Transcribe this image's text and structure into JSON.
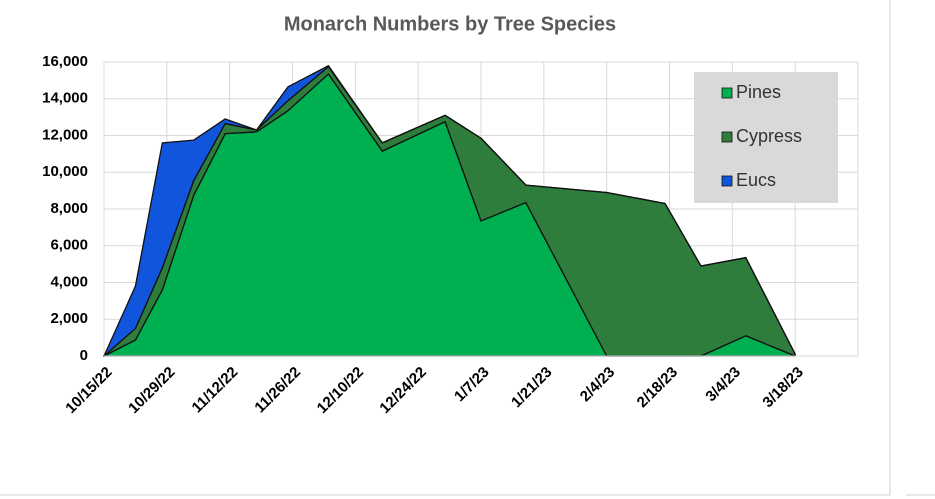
{
  "chart_data": {
    "type": "area",
    "stacked": true,
    "title": "Monarch Numbers by Tree Species",
    "x": [
      "2022-10-15",
      "2022-10-22",
      "2022-10-28",
      "2022-11-04",
      "2022-11-11",
      "2022-11-18",
      "2022-11-25",
      "2022-12-04",
      "2022-12-16",
      "2022-12-30",
      "2023-01-07",
      "2023-01-17",
      "2023-02-04",
      "2023-02-17",
      "2023-02-25",
      "2023-03-07",
      "2023-03-18"
    ],
    "series": [
      {
        "name": "Pines",
        "color": "#00b050",
        "values": [
          0,
          870,
          3600,
          8750,
          12100,
          12200,
          13350,
          15350,
          11150,
          12750,
          7350,
          8350,
          0,
          0,
          0,
          1100,
          0
        ]
      },
      {
        "name": "Cypress",
        "color": "#2e7d3c",
        "values": [
          0,
          630,
          1200,
          800,
          550,
          100,
          550,
          400,
          450,
          350,
          4500,
          950,
          8900,
          8300,
          4900,
          4250,
          100
        ]
      },
      {
        "name": "Eucs",
        "color": "#1155dd",
        "values": [
          0,
          2300,
          6800,
          2200,
          250,
          0,
          750,
          50,
          0,
          0,
          0,
          0,
          0,
          0,
          0,
          0,
          0
        ]
      }
    ],
    "xlim": [
      "2022-10-15",
      "2023-04-01"
    ],
    "xticks": [
      {
        "value": "2022-10-15",
        "label": "10/15/22"
      },
      {
        "value": "2022-10-29",
        "label": "10/29/22"
      },
      {
        "value": "2022-11-12",
        "label": "11/12/22"
      },
      {
        "value": "2022-11-26",
        "label": "11/26/22"
      },
      {
        "value": "2022-12-10",
        "label": "12/10/22"
      },
      {
        "value": "2022-12-24",
        "label": "12/24/22"
      },
      {
        "value": "2023-01-07",
        "label": "1/7/23"
      },
      {
        "value": "2023-01-21",
        "label": "1/21/23"
      },
      {
        "value": "2023-02-04",
        "label": "2/4/23"
      },
      {
        "value": "2023-02-18",
        "label": "2/18/23"
      },
      {
        "value": "2023-03-04",
        "label": "3/4/23"
      },
      {
        "value": "2023-03-18",
        "label": "3/18/23"
      }
    ],
    "ylim": [
      0,
      16000
    ],
    "yticks": [
      0,
      {
        "value": 2000,
        "label": "2,000"
      },
      {
        "value": 4000,
        "label": "4,000"
      },
      {
        "value": 6000,
        "label": "6,000"
      },
      {
        "value": 8000,
        "label": "8,000"
      },
      {
        "value": 10000,
        "label": "10,000"
      },
      {
        "value": 12000,
        "label": "12,000"
      },
      {
        "value": 14000,
        "label": "14,000"
      },
      {
        "value": 16000,
        "label": "16,000"
      }
    ],
    "grid": true,
    "legend": "upper right"
  }
}
